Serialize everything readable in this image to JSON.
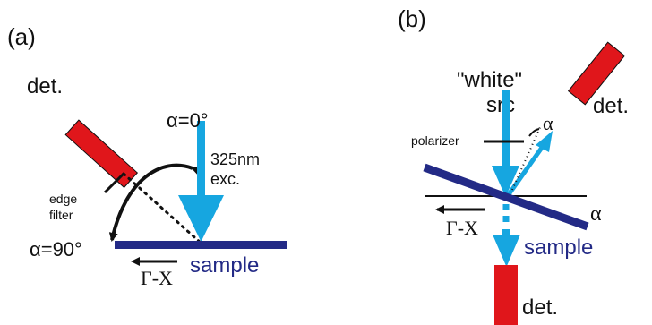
{
  "panel_a": {
    "label": "(a)",
    "detector": "det.",
    "filter_line1": "edge",
    "filter_line2": "filter",
    "alpha0": "α=0°",
    "alpha90": "α=90°",
    "excitation_line1": "325nm",
    "excitation_line2": "exc.",
    "direction": "Γ-X",
    "sample": "sample"
  },
  "panel_b": {
    "label": "(b)",
    "source_line1": "\"white\"",
    "source_line2": "src",
    "polarizer": "polarizer",
    "alpha_symbol": "α",
    "alpha_tilt": "α",
    "detector_top": "det.",
    "detector_bottom": "det.",
    "direction": "Γ-X",
    "sample": "sample"
  },
  "colors": {
    "detector": "#e0161b",
    "beam": "#16a6e0",
    "sample": "#232a86",
    "arrows": "#111111"
  }
}
